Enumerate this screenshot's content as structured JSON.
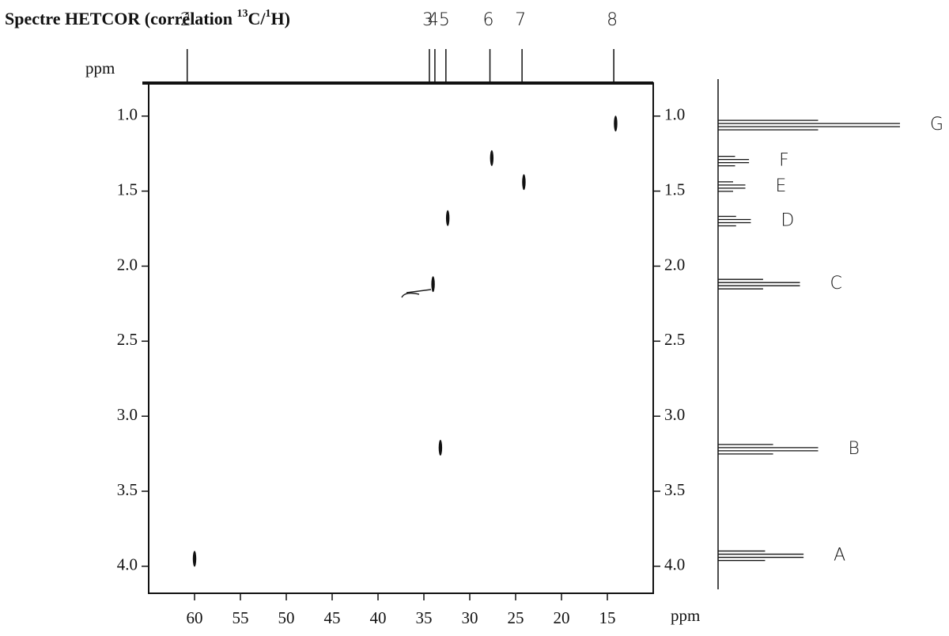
{
  "chart_data": {
    "type": "scatter",
    "title_parts": [
      "Spectre HETCOR (corrélation ",
      "13",
      "C/",
      "1",
      "H)"
    ],
    "x_unit": "ppm",
    "y_unit": "ppm",
    "x": [
      60.0,
      33.2,
      34.0,
      32.4,
      27.6,
      24.1,
      14.1
    ],
    "values": [
      3.95,
      3.21,
      2.12,
      1.68,
      1.28,
      1.44,
      1.05
    ],
    "xlim": [
      65,
      10
    ],
    "ylim": [
      0.78,
      4.18
    ],
    "xticks": [
      60,
      55,
      50,
      45,
      40,
      35,
      30,
      25,
      20,
      15
    ],
    "yticks": [
      {
        "value": 1,
        "label": "1.0"
      },
      1.5,
      {
        "value": 2,
        "label": "2.0"
      },
      2.5,
      {
        "value": 3,
        "label": "3.0"
      },
      3.5,
      {
        "value": 4,
        "label": "4.0"
      }
    ],
    "carbon_peaks": [
      {
        "label": "2",
        "ppm": 60.8
      },
      {
        "label": "3",
        "ppm": 34.4
      },
      {
        "label": "4",
        "ppm": 33.8
      },
      {
        "label": "5",
        "ppm": 32.6
      },
      {
        "label": "6",
        "ppm": 27.8
      },
      {
        "label": "7",
        "ppm": 24.3
      },
      {
        "label": "8",
        "ppm": 14.3
      }
    ],
    "proton_peaks": [
      {
        "label": "G",
        "ppm": 1.06,
        "intensity": 1.0
      },
      {
        "label": "F",
        "ppm": 1.3,
        "intensity": 0.17
      },
      {
        "label": "E",
        "ppm": 1.47,
        "intensity": 0.15
      },
      {
        "label": "D",
        "ppm": 1.7,
        "intensity": 0.18
      },
      {
        "label": "C",
        "ppm": 2.12,
        "intensity": 0.45
      },
      {
        "label": "B",
        "ppm": 3.22,
        "intensity": 0.55
      },
      {
        "label": "A",
        "ppm": 3.93,
        "intensity": 0.47
      }
    ]
  }
}
